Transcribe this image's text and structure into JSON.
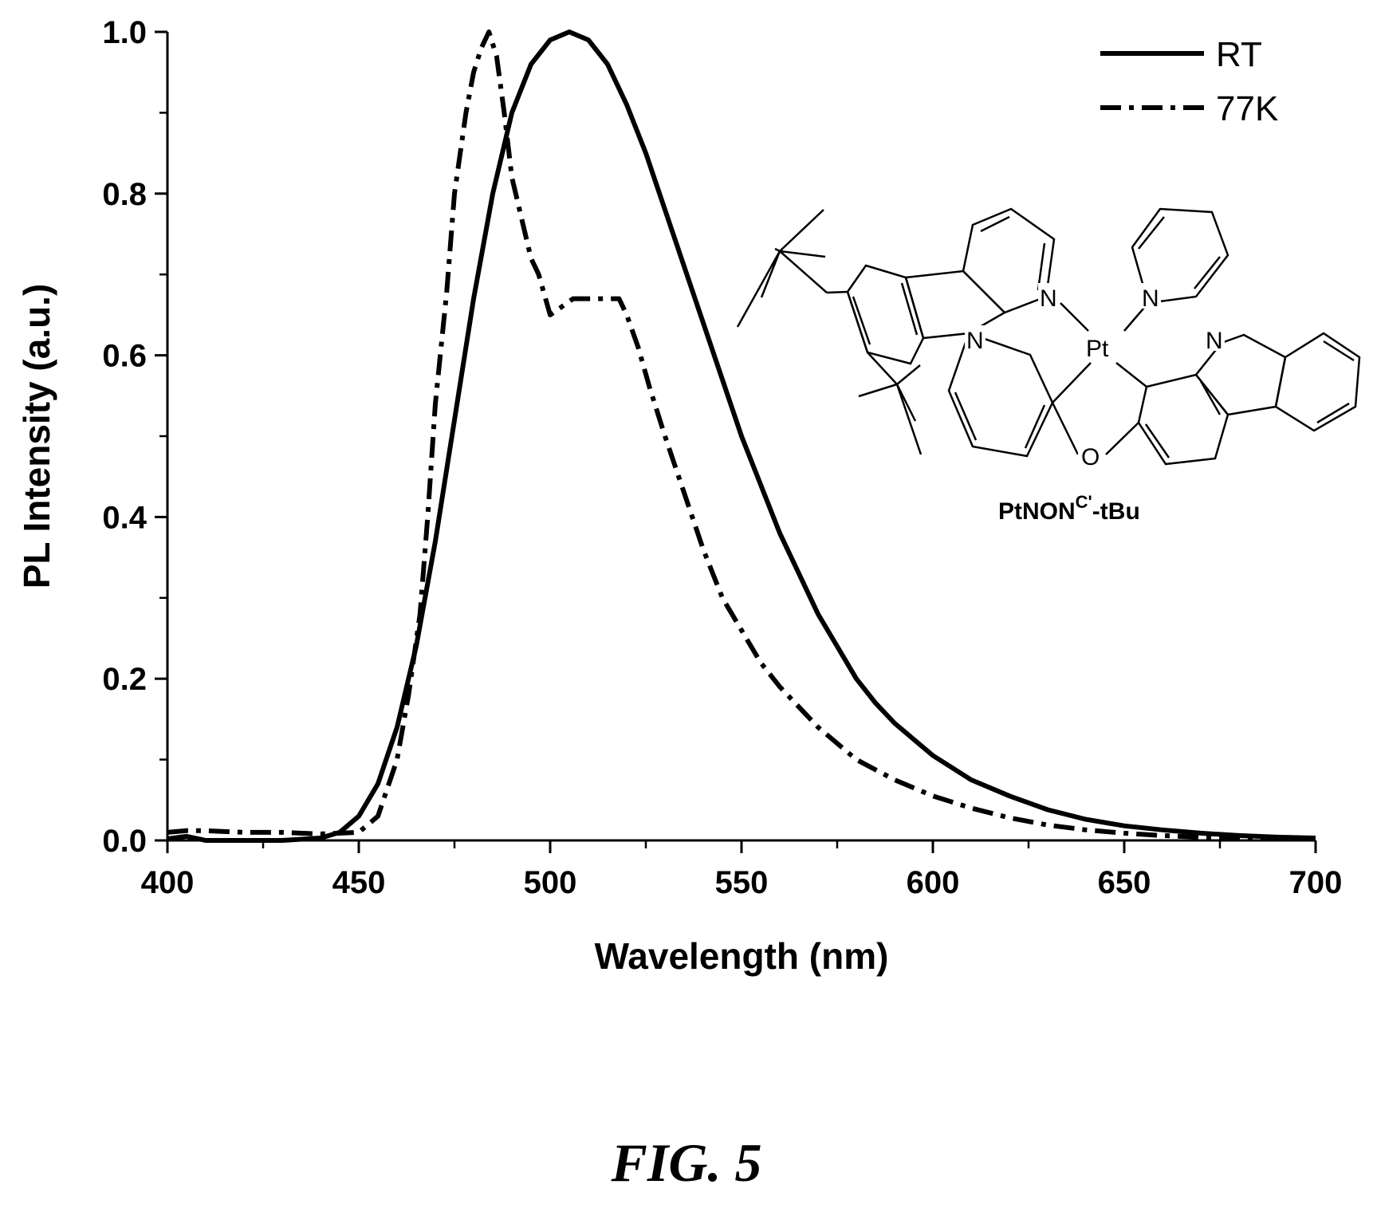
{
  "chart_data": {
    "type": "line",
    "xlabel": "Wavelength (nm)",
    "ylabel": "PL Intensity (a.u.)",
    "xlim": [
      400,
      700
    ],
    "ylim": [
      0,
      1.0
    ],
    "x_ticks": [
      "400",
      "450",
      "500",
      "550",
      "600",
      "650",
      "700"
    ],
    "y_ticks": [
      "0.0",
      "0.2",
      "0.4",
      "0.6",
      "0.8",
      "1.0"
    ],
    "grid": false,
    "legend_position": "top-right",
    "series": [
      {
        "name": "RT",
        "line_style": "solid",
        "color": "#000000",
        "x": [
          400,
          405,
          410,
          420,
          430,
          440,
          445,
          450,
          455,
          460,
          465,
          470,
          475,
          480,
          485,
          490,
          495,
          500,
          505,
          510,
          515,
          520,
          525,
          530,
          535,
          540,
          545,
          550,
          555,
          560,
          565,
          570,
          575,
          580,
          585,
          590,
          595,
          600,
          610,
          620,
          630,
          640,
          650,
          660,
          670,
          680,
          690,
          700
        ],
        "y": [
          0.002,
          0.005,
          0.0,
          0.0,
          0.0,
          0.003,
          0.01,
          0.03,
          0.07,
          0.14,
          0.24,
          0.37,
          0.52,
          0.67,
          0.8,
          0.9,
          0.96,
          0.99,
          1.0,
          0.99,
          0.96,
          0.91,
          0.85,
          0.78,
          0.71,
          0.64,
          0.57,
          0.5,
          0.44,
          0.38,
          0.33,
          0.28,
          0.24,
          0.2,
          0.17,
          0.145,
          0.125,
          0.105,
          0.075,
          0.055,
          0.038,
          0.026,
          0.018,
          0.013,
          0.009,
          0.006,
          0.004,
          0.003
        ]
      },
      {
        "name": "77K",
        "line_style": "dash-dot",
        "color": "#000000",
        "x": [
          400,
          405,
          410,
          420,
          430,
          440,
          450,
          455,
          460,
          463,
          466,
          468,
          470,
          473,
          475,
          478,
          480,
          482,
          484,
          486,
          488,
          490,
          493,
          495,
          497,
          500,
          503,
          506,
          510,
          515,
          518,
          520,
          523,
          526,
          530,
          535,
          540,
          545,
          550,
          555,
          560,
          570,
          580,
          590,
          600,
          610,
          620,
          630,
          640,
          650,
          660,
          670,
          680,
          690,
          700
        ],
        "y": [
          0.01,
          0.012,
          0.012,
          0.01,
          0.01,
          0.008,
          0.01,
          0.03,
          0.1,
          0.18,
          0.28,
          0.4,
          0.54,
          0.68,
          0.8,
          0.9,
          0.95,
          0.98,
          1.0,
          0.97,
          0.9,
          0.82,
          0.76,
          0.72,
          0.7,
          0.65,
          0.66,
          0.67,
          0.67,
          0.67,
          0.67,
          0.65,
          0.61,
          0.56,
          0.5,
          0.43,
          0.36,
          0.3,
          0.26,
          0.22,
          0.19,
          0.14,
          0.1,
          0.075,
          0.055,
          0.04,
          0.028,
          0.019,
          0.013,
          0.009,
          0.006,
          0.004,
          0.003,
          0.002,
          0.002
        ]
      }
    ]
  },
  "inset": {
    "molecule_name": "PtNON",
    "molecule_superscript": "C'",
    "molecule_suffix": "-tBu",
    "atom_labels": {
      "n1": "N",
      "n2": "N",
      "n3": "N",
      "n4": "N",
      "pt": "Pt",
      "o": "O"
    }
  },
  "caption": "FIG. 5"
}
